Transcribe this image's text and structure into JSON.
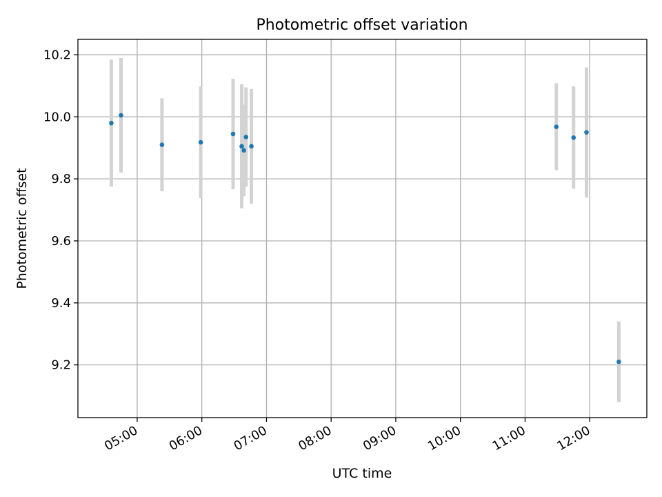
{
  "chart_data": {
    "type": "scatter",
    "title": "Photometric offset variation",
    "xlabel": "UTC time",
    "ylabel": "Photometric offset",
    "x_tick_labels": [
      "05:00",
      "06:00",
      "07:00",
      "08:00",
      "09:00",
      "10:00",
      "11:00",
      "12:00"
    ],
    "y_tick_labels": [
      "9.2",
      "9.4",
      "9.6",
      "9.8",
      "10.0",
      "10.2"
    ],
    "xlim": [
      "04:05",
      "12:53"
    ],
    "ylim": [
      9.03,
      10.25
    ],
    "grid": true,
    "marker_color": "#1f77b4",
    "errorbar_color": "#d3d3d3",
    "points": [
      {
        "x": "04:36",
        "y": 9.98,
        "err": 0.205
      },
      {
        "x": "04:45",
        "y": 10.005,
        "err": 0.185
      },
      {
        "x": "05:23",
        "y": 9.91,
        "err": 0.15
      },
      {
        "x": "05:59",
        "y": 9.918,
        "err": 0.18
      },
      {
        "x": "06:29",
        "y": 9.945,
        "err": 0.178
      },
      {
        "x": "06:37",
        "y": 9.905,
        "err": 0.2
      },
      {
        "x": "06:39",
        "y": 9.892,
        "err": 0.148
      },
      {
        "x": "06:41",
        "y": 9.935,
        "err": 0.16
      },
      {
        "x": "06:46",
        "y": 9.905,
        "err": 0.185
      },
      {
        "x": "11:29",
        "y": 9.968,
        "err": 0.14
      },
      {
        "x": "11:45",
        "y": 9.933,
        "err": 0.165
      },
      {
        "x": "11:57",
        "y": 9.95,
        "err": 0.21
      },
      {
        "x": "12:27",
        "y": 9.21,
        "err": 0.13
      }
    ]
  }
}
